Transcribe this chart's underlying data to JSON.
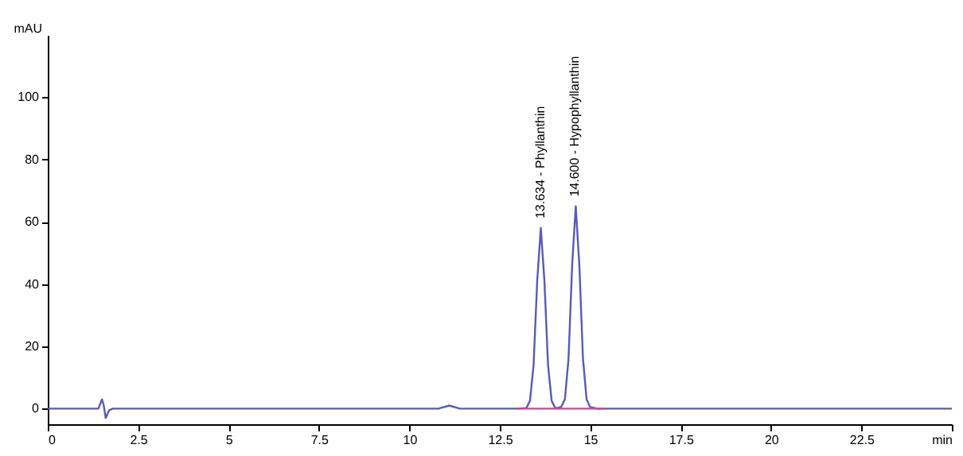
{
  "chart_data": {
    "type": "line",
    "ylabel": "mAU",
    "xlim": [
      0,
      25
    ],
    "xticks": [
      0,
      2.5,
      5,
      7.5,
      10,
      12.5,
      15,
      17.5,
      20,
      22.5,
      {
        "value": 25,
        "label": "min"
      }
    ],
    "ylim": [
      -5,
      120
    ],
    "yticks": [
      0,
      20,
      40,
      60,
      80,
      100
    ],
    "grid": false,
    "marker": "none",
    "line_style": "solid",
    "series": [
      {
        "color": "#5a5ab4",
        "x": [
          0,
          1.2,
          1.4,
          1.5,
          1.55,
          1.6,
          1.7,
          1.8,
          10.8,
          11.1,
          11.4,
          13.0,
          13.234,
          13.334,
          13.434,
          13.534,
          13.634,
          13.734,
          13.834,
          13.934,
          14.034,
          14.12,
          14.2,
          14.3,
          14.4,
          14.5,
          14.6,
          14.7,
          14.8,
          14.9,
          15.0,
          15.2,
          25
        ],
        "values": [
          0,
          0,
          0,
          3,
          1,
          -3,
          -0.5,
          0,
          0,
          1,
          0,
          0,
          0.2,
          2.5,
          14,
          41,
          58,
          41,
          14,
          2.5,
          0.2,
          0.3,
          0.6,
          3,
          16,
          46,
          65,
          46,
          16,
          3,
          0.5,
          0,
          0
        ]
      },
      {
        "color": "#d040a0",
        "x": [
          13.0,
          15.4
        ],
        "values": [
          0,
          0
        ]
      }
    ],
    "annotations": [
      {
        "text": "13.634 - Phyllanthin",
        "x": 13.634,
        "y": 58
      },
      {
        "text": "14.600 - Hypophyllanthin",
        "x": 14.6,
        "y": 65
      }
    ]
  }
}
